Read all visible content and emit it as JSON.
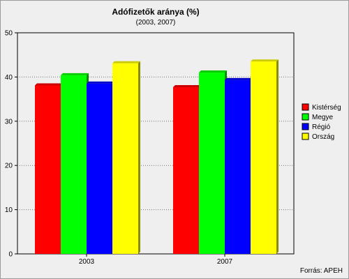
{
  "chart_data": {
    "type": "bar",
    "title": "Adófizetők aránya (%)",
    "subtitle": "(2003, 2007)",
    "categories": [
      "2003",
      "2007"
    ],
    "series": [
      {
        "name": "Kistérség",
        "color": "#ff0000",
        "values": [
          38.1,
          37.7
        ]
      },
      {
        "name": "Megye",
        "color": "#00ff00",
        "values": [
          40.4,
          41.0
        ]
      },
      {
        "name": "Régió",
        "color": "#0000ff",
        "values": [
          38.5,
          39.3
        ]
      },
      {
        "name": "Ország",
        "color": "#ffff00",
        "values": [
          43.1,
          43.5
        ]
      }
    ],
    "ylim": [
      0,
      50
    ],
    "yticks": [
      0,
      10,
      20,
      30,
      40,
      50
    ],
    "grid": true,
    "legend_position": "right",
    "xlabel": "",
    "ylabel": ""
  },
  "source": "Forrás: APEH"
}
